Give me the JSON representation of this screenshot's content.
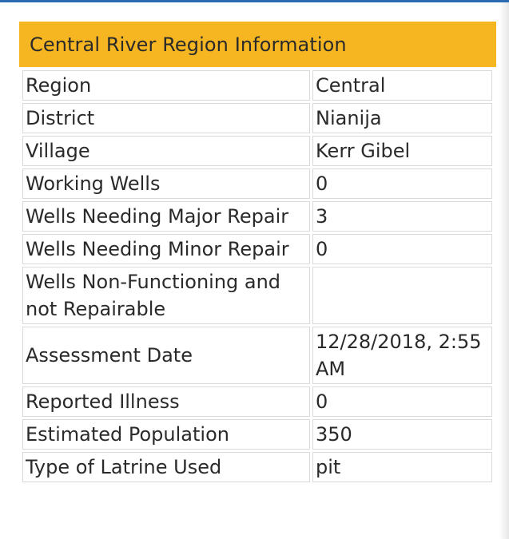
{
  "popup": {
    "title": "Central River Region Information",
    "rows": [
      {
        "label": "Region",
        "value": "Central"
      },
      {
        "label": "District",
        "value": "Nianija"
      },
      {
        "label": "Village",
        "value": "Kerr Gibel"
      },
      {
        "label": "Working Wells",
        "value": "0"
      },
      {
        "label": "Wells Needing Major Repair",
        "value": "3"
      },
      {
        "label": "Wells Needing Minor Repair",
        "value": "0"
      },
      {
        "label": "Wells Non-Functioning and not Repairable",
        "value": ""
      },
      {
        "label": "Assessment Date",
        "value": "12/28/2018, 2:55 AM"
      },
      {
        "label": "Reported Illness",
        "value": "0"
      },
      {
        "label": "Estimated Population",
        "value": "350"
      },
      {
        "label": "Type of Latrine Used",
        "value": "pit"
      }
    ]
  },
  "colors": {
    "header_background": "#f5b622",
    "top_accent": "#2b6cb0",
    "cell_border": "#d9d9d9",
    "text": "#2a2a2a"
  }
}
